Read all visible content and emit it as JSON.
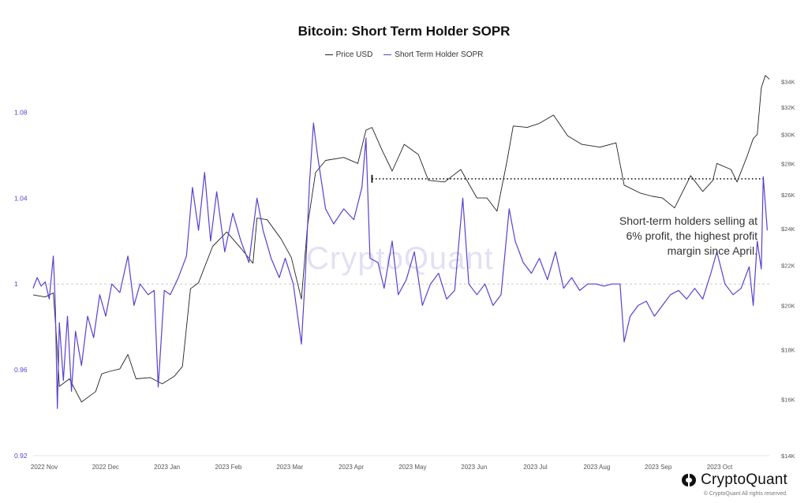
{
  "header": {
    "title": "Bitcoin: Short Term Holder SOPR"
  },
  "legend": [
    {
      "label": "Price USD",
      "color": "#222222"
    },
    {
      "label": "Short Term Holder SOPR",
      "color": "#5b3fd1"
    }
  ],
  "annotation": {
    "lines": [
      "Short-term holders selling at",
      "6% profit, the highest profit",
      "margin since April."
    ]
  },
  "watermark": "CryptoQuant",
  "brand": {
    "name": "CryptoQuant",
    "copyright": "© CryptoQuant All rights reserved."
  },
  "chart_data": {
    "type": "line",
    "title": "Bitcoin: Short Term Holder SOPR",
    "x_ticks": [
      "2022 Nov",
      "2022 Dec",
      "2023 Jan",
      "2023 Feb",
      "2023 Mar",
      "2023 Apr",
      "2023 May",
      "2023 Jun",
      "2023 Jul",
      "2023 Aug",
      "2023 Sep",
      "2023 Oct"
    ],
    "x_range": [
      "2022-10-28",
      "2023-10-28"
    ],
    "y_left": {
      "ticks": [
        "0.92",
        "0.96",
        "1",
        "1.04",
        "1.08"
      ],
      "range": [
        0.92,
        1.1
      ],
      "color": "#5b3fd1"
    },
    "y_right": {
      "scale": "log",
      "ticks": [
        "$14K",
        "$16K",
        "$18K",
        "$20K",
        "$22K",
        "$24K",
        "$26K",
        "$28K",
        "$30K",
        "$32K",
        "$34K"
      ],
      "range": [
        14000,
        35000
      ]
    },
    "reference_line": {
      "axis": "left",
      "value": 1.0,
      "style": "dashed"
    },
    "highlight_line": {
      "axis": "right",
      "value": 27000,
      "from": "2023-04-14",
      "to": "2023-10-25",
      "style": "dotted"
    },
    "grid": false,
    "legend_position": "top-center",
    "series": [
      {
        "name": "Price USD",
        "axis": "right",
        "color": "#222222",
        "points": [
          [
            "2022-10-28",
            20500
          ],
          [
            "2022-11-03",
            20400
          ],
          [
            "2022-11-07",
            20600
          ],
          [
            "2022-11-09",
            18000
          ],
          [
            "2022-11-10",
            16500
          ],
          [
            "2022-11-15",
            16800
          ],
          [
            "2022-11-21",
            15900
          ],
          [
            "2022-11-28",
            16300
          ],
          [
            "2022-12-01",
            17000
          ],
          [
            "2022-12-05",
            17100
          ],
          [
            "2022-12-10",
            17200
          ],
          [
            "2022-12-14",
            17800
          ],
          [
            "2022-12-18",
            16800
          ],
          [
            "2022-12-25",
            16850
          ],
          [
            "2022-12-31",
            16600
          ],
          [
            "2023-01-06",
            16900
          ],
          [
            "2023-01-10",
            17300
          ],
          [
            "2023-01-14",
            20800
          ],
          [
            "2023-01-18",
            21100
          ],
          [
            "2023-01-25",
            23000
          ],
          [
            "2023-02-01",
            23800
          ],
          [
            "2023-02-08",
            22900
          ],
          [
            "2023-02-14",
            22100
          ],
          [
            "2023-02-16",
            24600
          ],
          [
            "2023-02-21",
            24500
          ],
          [
            "2023-02-28",
            23400
          ],
          [
            "2023-03-05",
            22400
          ],
          [
            "2023-03-10",
            20300
          ],
          [
            "2023-03-13",
            24100
          ],
          [
            "2023-03-17",
            27400
          ],
          [
            "2023-03-22",
            28200
          ],
          [
            "2023-03-31",
            28400
          ],
          [
            "2023-04-07",
            28000
          ],
          [
            "2023-04-11",
            30300
          ],
          [
            "2023-04-14",
            30500
          ],
          [
            "2023-04-19",
            28900
          ],
          [
            "2023-04-24",
            27500
          ],
          [
            "2023-04-30",
            29300
          ],
          [
            "2023-05-07",
            28600
          ],
          [
            "2023-05-12",
            26900
          ],
          [
            "2023-05-20",
            26800
          ],
          [
            "2023-05-28",
            27600
          ],
          [
            "2023-06-05",
            25800
          ],
          [
            "2023-06-10",
            25800
          ],
          [
            "2023-06-15",
            25000
          ],
          [
            "2023-06-20",
            28200
          ],
          [
            "2023-06-23",
            30600
          ],
          [
            "2023-06-30",
            30500
          ],
          [
            "2023-07-06",
            30800
          ],
          [
            "2023-07-13",
            31400
          ],
          [
            "2023-07-20",
            29900
          ],
          [
            "2023-07-27",
            29300
          ],
          [
            "2023-08-05",
            29100
          ],
          [
            "2023-08-13",
            29400
          ],
          [
            "2023-08-17",
            26600
          ],
          [
            "2023-08-25",
            26100
          ],
          [
            "2023-08-31",
            25900
          ],
          [
            "2023-09-05",
            25800
          ],
          [
            "2023-09-11",
            25200
          ],
          [
            "2023-09-19",
            27200
          ],
          [
            "2023-09-25",
            26200
          ],
          [
            "2023-09-30",
            26900
          ],
          [
            "2023-10-02",
            28000
          ],
          [
            "2023-10-09",
            27600
          ],
          [
            "2023-10-12",
            26800
          ],
          [
            "2023-10-17",
            28500
          ],
          [
            "2023-10-20",
            29700
          ],
          [
            "2023-10-22",
            30000
          ],
          [
            "2023-10-24",
            33500
          ],
          [
            "2023-10-26",
            34500
          ],
          [
            "2023-10-28",
            34200
          ]
        ]
      },
      {
        "name": "Short Term Holder SOPR",
        "axis": "left",
        "color": "#5b3fd1",
        "points": [
          [
            "2022-10-28",
            0.998
          ],
          [
            "2022-10-30",
            1.003
          ],
          [
            "2022-11-01",
            0.999
          ],
          [
            "2022-11-03",
            1.001
          ],
          [
            "2022-11-05",
            0.993
          ],
          [
            "2022-11-07",
            1.013
          ],
          [
            "2022-11-08",
            0.99
          ],
          [
            "2022-11-09",
            0.942
          ],
          [
            "2022-11-10",
            0.982
          ],
          [
            "2022-11-12",
            0.955
          ],
          [
            "2022-11-14",
            0.985
          ],
          [
            "2022-11-16",
            0.95
          ],
          [
            "2022-11-18",
            0.978
          ],
          [
            "2022-11-21",
            0.962
          ],
          [
            "2022-11-24",
            0.985
          ],
          [
            "2022-11-27",
            0.975
          ],
          [
            "2022-11-30",
            0.995
          ],
          [
            "2022-12-03",
            0.985
          ],
          [
            "2022-12-06",
            1.0
          ],
          [
            "2022-12-10",
            0.996
          ],
          [
            "2022-12-14",
            1.013
          ],
          [
            "2022-12-17",
            0.99
          ],
          [
            "2022-12-20",
            1.0
          ],
          [
            "2022-12-24",
            0.995
          ],
          [
            "2022-12-27",
            0.997
          ],
          [
            "2022-12-29",
            0.952
          ],
          [
            "2023-01-01",
            0.997
          ],
          [
            "2023-01-04",
            0.995
          ],
          [
            "2023-01-08",
            1.003
          ],
          [
            "2023-01-12",
            1.013
          ],
          [
            "2023-01-15",
            1.045
          ],
          [
            "2023-01-18",
            1.025
          ],
          [
            "2023-01-21",
            1.052
          ],
          [
            "2023-01-24",
            1.02
          ],
          [
            "2023-01-27",
            1.043
          ],
          [
            "2023-01-31",
            1.015
          ],
          [
            "2023-02-04",
            1.033
          ],
          [
            "2023-02-08",
            1.02
          ],
          [
            "2023-02-12",
            1.01
          ],
          [
            "2023-02-16",
            1.04
          ],
          [
            "2023-02-19",
            1.025
          ],
          [
            "2023-02-23",
            1.012
          ],
          [
            "2023-02-27",
            1.003
          ],
          [
            "2023-03-02",
            1.012
          ],
          [
            "2023-03-06",
            1.0
          ],
          [
            "2023-03-10",
            0.972
          ],
          [
            "2023-03-12",
            1.005
          ],
          [
            "2023-03-14",
            1.047
          ],
          [
            "2023-03-16",
            1.075
          ],
          [
            "2023-03-18",
            1.06
          ],
          [
            "2023-03-22",
            1.035
          ],
          [
            "2023-03-26",
            1.028
          ],
          [
            "2023-03-31",
            1.035
          ],
          [
            "2023-04-05",
            1.03
          ],
          [
            "2023-04-09",
            1.045
          ],
          [
            "2023-04-11",
            1.068
          ],
          [
            "2023-04-13",
            1.012
          ],
          [
            "2023-04-17",
            1.01
          ],
          [
            "2023-04-20",
            0.998
          ],
          [
            "2023-04-24",
            1.02
          ],
          [
            "2023-04-27",
            0.995
          ],
          [
            "2023-05-01",
            1.002
          ],
          [
            "2023-05-05",
            1.015
          ],
          [
            "2023-05-09",
            0.99
          ],
          [
            "2023-05-13",
            1.0
          ],
          [
            "2023-05-17",
            1.005
          ],
          [
            "2023-05-21",
            0.993
          ],
          [
            "2023-05-25",
            0.997
          ],
          [
            "2023-05-29",
            1.04
          ],
          [
            "2023-06-01",
            1.0
          ],
          [
            "2023-06-05",
            0.995
          ],
          [
            "2023-06-09",
            1.0
          ],
          [
            "2023-06-13",
            0.99
          ],
          [
            "2023-06-17",
            0.995
          ],
          [
            "2023-06-21",
            1.035
          ],
          [
            "2023-06-24",
            1.02
          ],
          [
            "2023-06-28",
            1.01
          ],
          [
            "2023-07-02",
            1.005
          ],
          [
            "2023-07-06",
            1.012
          ],
          [
            "2023-07-10",
            1.002
          ],
          [
            "2023-07-14",
            1.015
          ],
          [
            "2023-07-18",
            0.998
          ],
          [
            "2023-07-22",
            1.003
          ],
          [
            "2023-07-26",
            0.997
          ],
          [
            "2023-07-30",
            1.0
          ],
          [
            "2023-08-03",
            1.0
          ],
          [
            "2023-08-07",
            0.999
          ],
          [
            "2023-08-11",
            1.0
          ],
          [
            "2023-08-15",
            1.0
          ],
          [
            "2023-08-17",
            0.973
          ],
          [
            "2023-08-20",
            0.985
          ],
          [
            "2023-08-24",
            0.99
          ],
          [
            "2023-08-28",
            0.992
          ],
          [
            "2023-09-01",
            0.985
          ],
          [
            "2023-09-05",
            0.99
          ],
          [
            "2023-09-09",
            0.995
          ],
          [
            "2023-09-13",
            0.997
          ],
          [
            "2023-09-17",
            0.993
          ],
          [
            "2023-09-21",
            0.998
          ],
          [
            "2023-09-25",
            0.993
          ],
          [
            "2023-09-29",
            1.005
          ],
          [
            "2023-10-02",
            1.015
          ],
          [
            "2023-10-06",
            1.0
          ],
          [
            "2023-10-10",
            0.995
          ],
          [
            "2023-10-14",
            0.998
          ],
          [
            "2023-10-18",
            1.008
          ],
          [
            "2023-10-20",
            0.99
          ],
          [
            "2023-10-22",
            1.02
          ],
          [
            "2023-10-24",
            1.007
          ],
          [
            "2023-10-25",
            1.05
          ],
          [
            "2023-10-27",
            1.025
          ]
        ]
      }
    ]
  }
}
